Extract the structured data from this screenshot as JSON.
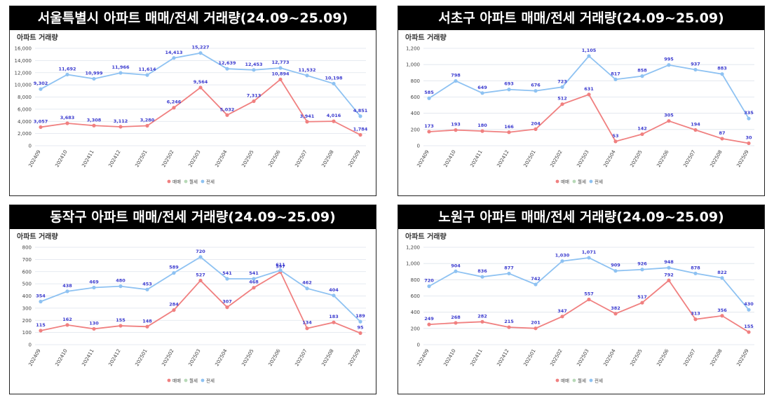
{
  "colors": {
    "sale": "#f08080",
    "monthly": "#b7d9b7",
    "jeonse": "#8ec2f2",
    "label": "#3b3bcf",
    "grid": "#dde3ec"
  },
  "chart_data": [
    {
      "type": "line",
      "title": "서울특별시 아파트 매매/전세 거래량(24.09~25.09)",
      "subtitle": "아파트 거래량",
      "categories": [
        "202409",
        "202410",
        "202411",
        "202412",
        "202501",
        "202502",
        "202503",
        "202504",
        "202505",
        "202506",
        "202507",
        "202508",
        "202509"
      ],
      "ylim": [
        0,
        16000
      ],
      "yticks": [
        0,
        2000,
        4000,
        6000,
        8000,
        10000,
        12000,
        14000,
        16000
      ],
      "ytick_labels": [
        "0",
        "2,000",
        "4,000",
        "6,000",
        "8,000",
        "10,000",
        "12,000",
        "14,000",
        "16,000"
      ],
      "legend": [
        "매매",
        "월세",
        "전세"
      ],
      "series": [
        {
          "name": "매매",
          "values": [
            3057,
            3683,
            3308,
            3112,
            3280,
            6246,
            9564,
            5032,
            7313,
            10894,
            3941,
            4016,
            1784
          ],
          "labels": [
            "3,057",
            "3,683",
            "3,308",
            "3,112",
            "3,280",
            "6,246",
            "9,564",
            "5,032",
            "7,313",
            "10,894",
            "3,941",
            "4,016",
            "1,784"
          ]
        },
        {
          "name": "전세",
          "values": [
            9302,
            11692,
            10999,
            11966,
            11614,
            14413,
            15227,
            12639,
            12453,
            12773,
            11532,
            10198,
            4851
          ],
          "labels": [
            "9,302",
            "11,692",
            "10,999",
            "11,966",
            "11,614",
            "14,413",
            "15,227",
            "12,639",
            "12,453",
            "12,773",
            "11,532",
            "10,198",
            "4,851"
          ]
        }
      ]
    },
    {
      "type": "line",
      "title": "서초구 아파트 매매/전세 거래량(24.09~25.09)",
      "subtitle": "아파트 거래량",
      "categories": [
        "202409",
        "202410",
        "202411",
        "202412",
        "202501",
        "202502",
        "202503",
        "202504",
        "202505",
        "202506",
        "202507",
        "202508",
        "202509"
      ],
      "ylim": [
        0,
        1200
      ],
      "yticks": [
        0,
        200,
        400,
        600,
        800,
        1000,
        1200
      ],
      "ytick_labels": [
        "0",
        "200",
        "400",
        "600",
        "800",
        "1,000",
        "1,200"
      ],
      "legend": [
        "매매",
        "월세",
        "전세"
      ],
      "series": [
        {
          "name": "매매",
          "values": [
            173,
            193,
            180,
            166,
            204,
            512,
            631,
            53,
            142,
            305,
            194,
            87,
            30
          ],
          "labels": [
            "173",
            "193",
            "180",
            "166",
            "204",
            "512",
            "631",
            "53",
            "142",
            "305",
            "194",
            "87",
            "30"
          ]
        },
        {
          "name": "전세",
          "values": [
            585,
            798,
            649,
            693,
            676,
            723,
            1105,
            817,
            858,
            995,
            937,
            883,
            335
          ],
          "labels": [
            "585",
            "798",
            "649",
            "693",
            "676",
            "723",
            "1,105",
            "817",
            "858",
            "995",
            "937",
            "883",
            "335"
          ]
        }
      ]
    },
    {
      "type": "line",
      "title": "동작구 아파트 매매/전세 거래량(24.09~25.09)",
      "subtitle": "아파트 거래량",
      "categories": [
        "202409",
        "202410",
        "202411",
        "202412",
        "202501",
        "202502",
        "202503",
        "202504",
        "202505",
        "202506",
        "202507",
        "202508",
        "202509"
      ],
      "ylim": [
        0,
        800
      ],
      "yticks": [
        0,
        100,
        200,
        300,
        400,
        500,
        600,
        700,
        800
      ],
      "ytick_labels": [
        "0",
        "100",
        "200",
        "300",
        "400",
        "500",
        "600",
        "700",
        "800"
      ],
      "legend": [
        "매매",
        "월세",
        "전세"
      ],
      "series": [
        {
          "name": "매매",
          "values": [
            115,
            162,
            130,
            155,
            148,
            284,
            527,
            307,
            468,
            597,
            134,
            183,
            95
          ],
          "labels": [
            "115",
            "162",
            "130",
            "155",
            "148",
            "284",
            "527",
            "307",
            "468",
            "597",
            "134",
            "183",
            "95"
          ]
        },
        {
          "name": "전세",
          "values": [
            354,
            438,
            469,
            480,
            453,
            589,
            720,
            541,
            541,
            611,
            462,
            404,
            189
          ],
          "labels": [
            "354",
            "438",
            "469",
            "480",
            "453",
            "589",
            "720",
            "541",
            "541",
            "611",
            "462",
            "404",
            "189"
          ]
        }
      ]
    },
    {
      "type": "line",
      "title": "노원구 아파트 매매/전세 거래량(24.09~25.09)",
      "subtitle": "아파트 거래량",
      "categories": [
        "202409",
        "202410",
        "202411",
        "202412",
        "202501",
        "202502",
        "202503",
        "202504",
        "202505",
        "202506",
        "202507",
        "202508",
        "202509"
      ],
      "ylim": [
        0,
        1200
      ],
      "yticks": [
        0,
        200,
        400,
        600,
        800,
        1000,
        1200
      ],
      "ytick_labels": [
        "0",
        "200",
        "400",
        "600",
        "800",
        "1,000",
        "1,200"
      ],
      "legend": [
        "매매",
        "월세",
        "전세"
      ],
      "series": [
        {
          "name": "매매",
          "values": [
            249,
            268,
            282,
            215,
            201,
            347,
            557,
            382,
            517,
            792,
            313,
            356,
            155
          ],
          "labels": [
            "249",
            "268",
            "282",
            "215",
            "201",
            "347",
            "557",
            "382",
            "517",
            "792",
            "313",
            "356",
            "155"
          ]
        },
        {
          "name": "전세",
          "values": [
            720,
            904,
            836,
            877,
            742,
            1030,
            1071,
            909,
            926,
            948,
            878,
            822,
            430
          ],
          "labels": [
            "720",
            "904",
            "836",
            "877",
            "742",
            "1,030",
            "1,071",
            "909",
            "926",
            "948",
            "878",
            "822",
            "430"
          ]
        }
      ]
    }
  ]
}
